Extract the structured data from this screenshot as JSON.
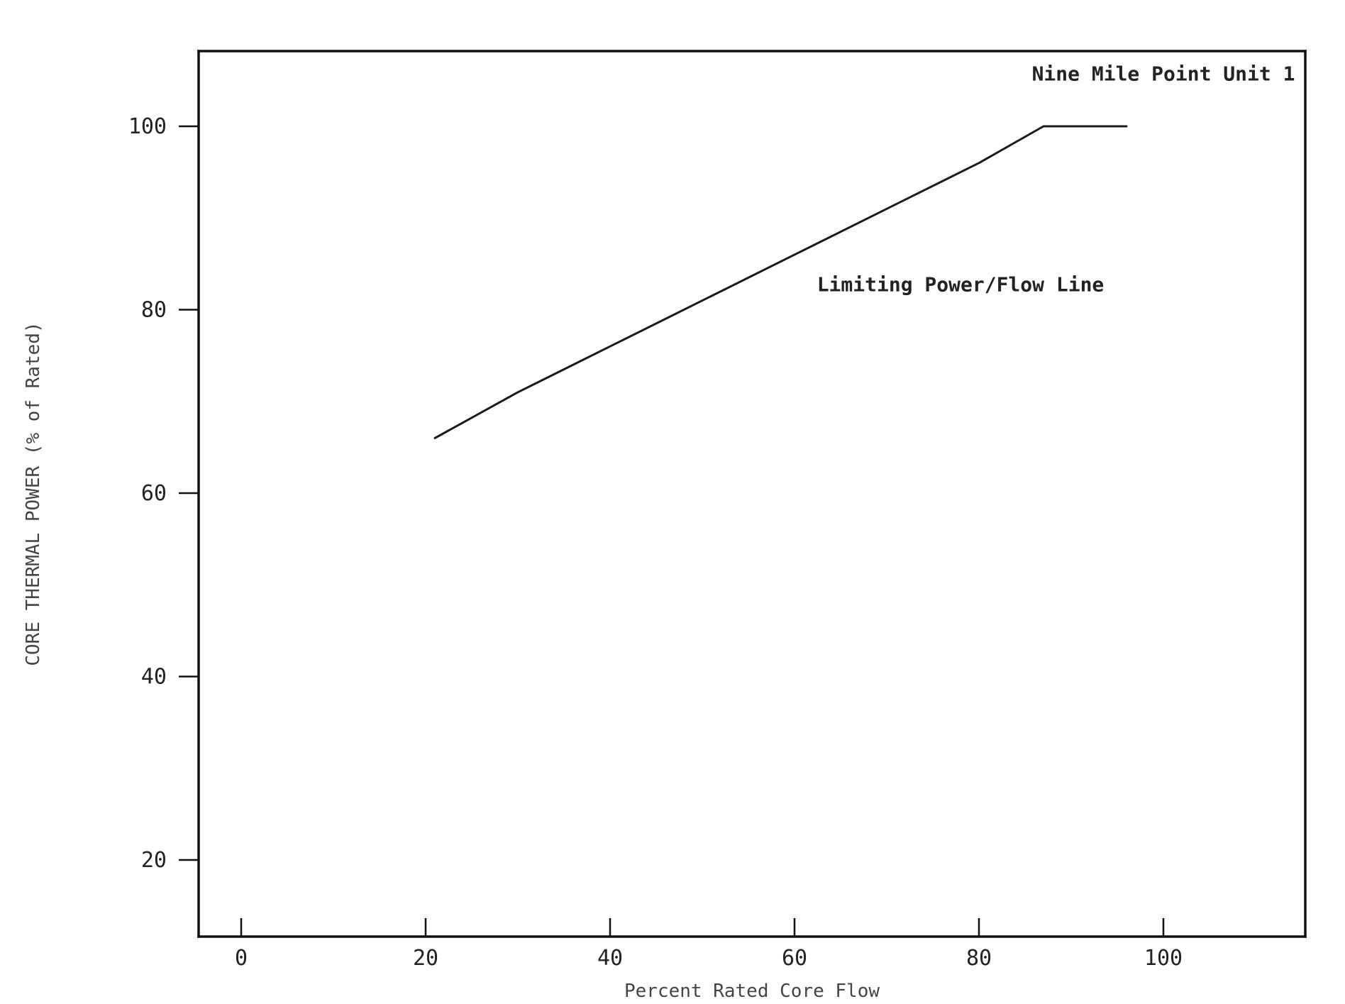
{
  "chart_data": {
    "type": "line",
    "title": "",
    "xlabel": "Percent Rated Core Flow",
    "ylabel": "CORE THERMAL POWER (% of Rated)",
    "xlim": [
      0,
      115
    ],
    "ylim": [
      10,
      110
    ],
    "x_ticks": [
      0,
      20,
      40,
      60,
      80,
      100
    ],
    "y_ticks": [
      20,
      40,
      60,
      80,
      100
    ],
    "grid": false,
    "legend": "none",
    "series": [
      {
        "name": "Limiting Power/Flow Line",
        "x": [
          21,
          30,
          40,
          50,
          60,
          70,
          80,
          87,
          96
        ],
        "y": [
          66,
          71,
          76,
          81,
          86,
          91,
          96,
          100,
          100
        ]
      }
    ],
    "annotations": [
      {
        "text": "Nine Mile Point Unit 1",
        "x": 100,
        "y": 105
      },
      {
        "text": "Limiting Power/Flow Line",
        "x": 78,
        "y": 82
      }
    ],
    "colors": {
      "line": "#1a1a1a",
      "frame": "#111111",
      "text": "#222222"
    }
  }
}
